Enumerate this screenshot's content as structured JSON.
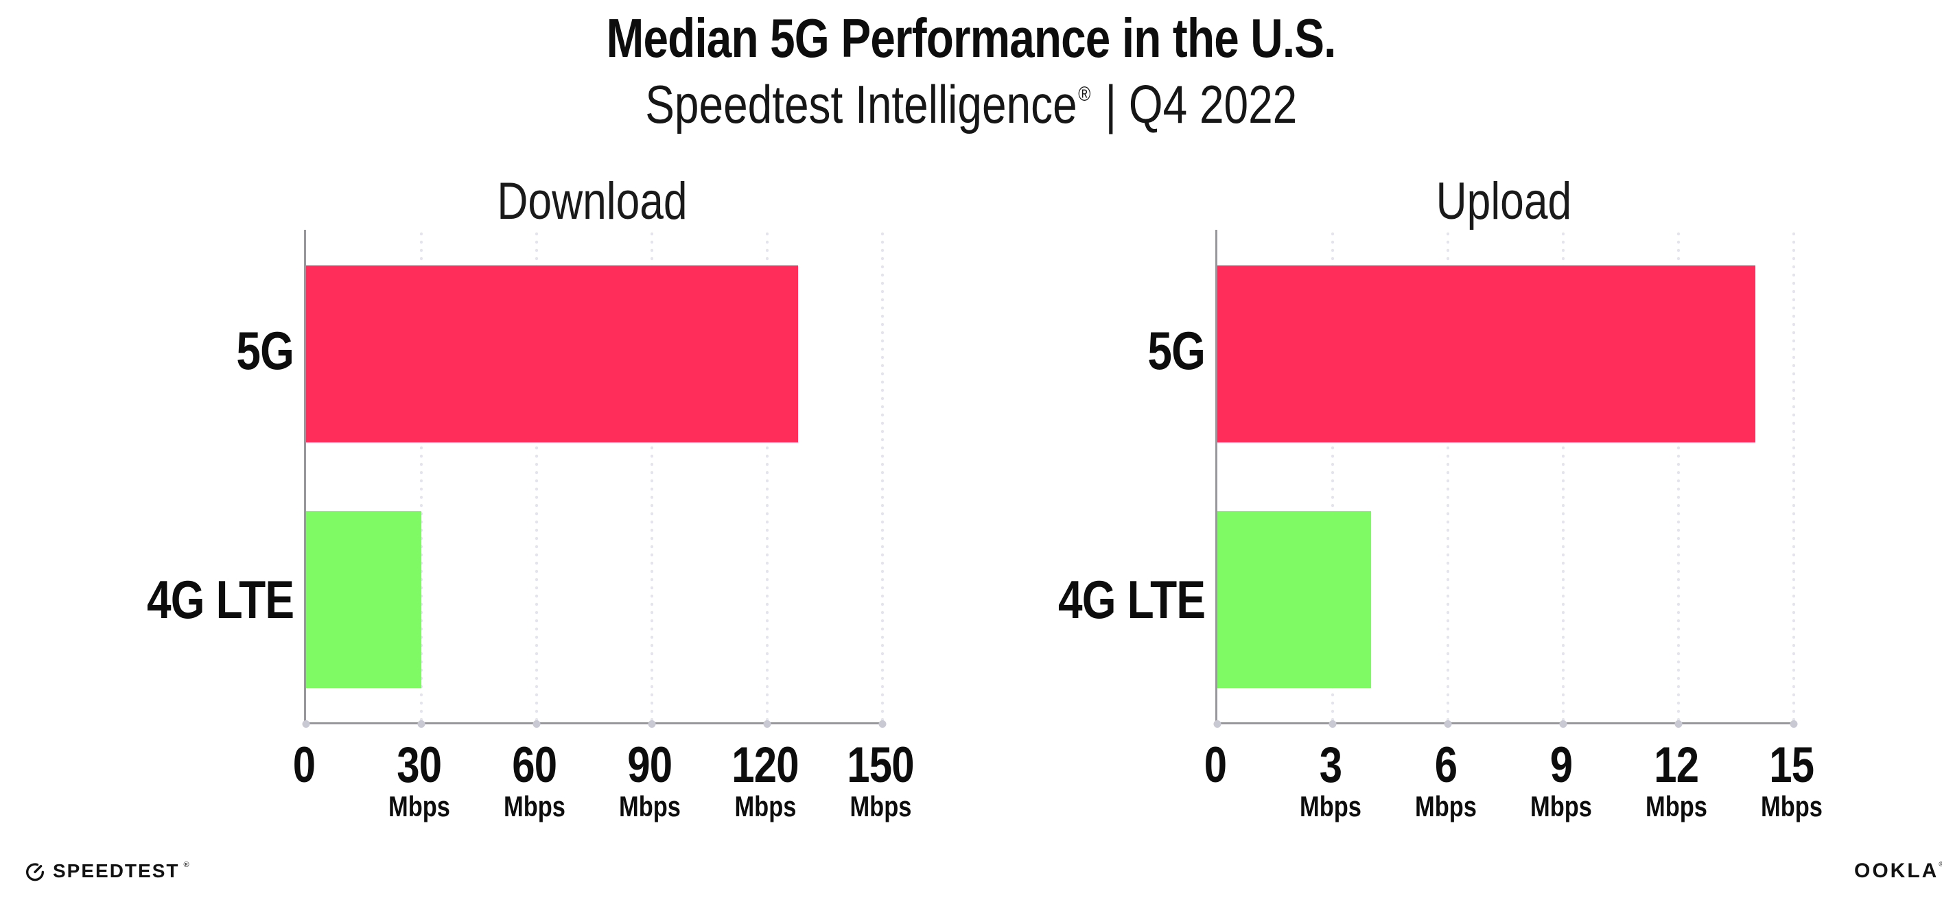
{
  "header": {
    "title": "Median 5G Performance in the U.S.",
    "subtitle_brand": "Speedtest Intelligence",
    "subtitle_reg": "®",
    "subtitle_rest": " | Q4 2022"
  },
  "colors": {
    "bar_5g": "#ff2d59",
    "bar_4g_lte": "#7ffa64",
    "axis": "#97979d",
    "gridline_dots": "#e4e4ee",
    "tick_dots": "#c9c9d4",
    "text": "#0d0d0d"
  },
  "chart_data": [
    {
      "type": "bar",
      "orientation": "horizontal",
      "title": "Download",
      "categories": [
        "5G",
        "4G LTE"
      ],
      "values": [
        128,
        30
      ],
      "unit": "Mbps",
      "xlim": [
        0,
        150
      ],
      "ticks": [
        "0",
        "30",
        "60",
        "90",
        "120",
        "150"
      ],
      "tick_unit": "Mbps",
      "bar_colors": [
        "#ff2d59",
        "#7ffa64"
      ],
      "grid": "vertical-dotted",
      "legend": "none"
    },
    {
      "type": "bar",
      "orientation": "horizontal",
      "title": "Upload",
      "categories": [
        "5G",
        "4G LTE"
      ],
      "values": [
        14,
        4
      ],
      "unit": "Mbps",
      "xlim": [
        0,
        15
      ],
      "ticks": [
        "0",
        "3",
        "6",
        "9",
        "12",
        "15"
      ],
      "tick_unit": "Mbps",
      "bar_colors": [
        "#ff2d59",
        "#7ffa64"
      ],
      "grid": "vertical-dotted",
      "legend": "none"
    }
  ],
  "footer": {
    "speedtest_label": "SPEEDTEST",
    "speedtest_mark": "®",
    "speedtest_icon": "speedometer-gauge-icon",
    "ookla_label": "OOKLA",
    "ookla_mark": "®"
  }
}
